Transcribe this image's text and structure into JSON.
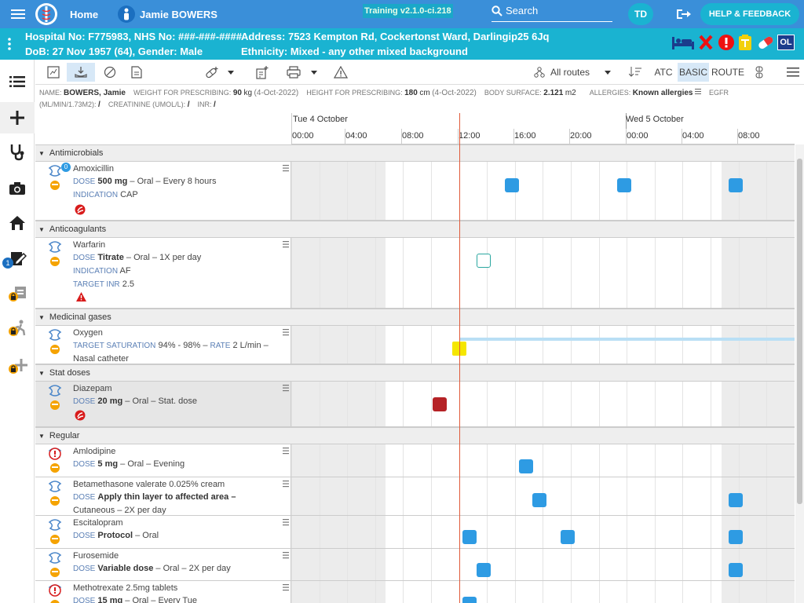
{
  "topbar": {
    "home_label": "Home",
    "patient_name": "Jamie BOWERS",
    "version_label": "Training v2.1.0-ci.218",
    "search_placeholder": "Search",
    "user_initials": "TD",
    "help_label": "HELP & FEEDBACK"
  },
  "patient": {
    "hospital_line": "Hospital No: F775983, NHS No: ###-###-####",
    "address_line": "Address: 7523 Kempton Rd, Cockertonst Ward, Darlingip25 6Jq",
    "dob_line": "DoB: 27 Nov 1957 (64), Gender: Male",
    "ethnicity_line": "Ethnicity: Mixed - any other mixed background",
    "ol_badge": "OL"
  },
  "leftnav": {
    "notif_count": "1"
  },
  "toolbar": {
    "routes_label": "All routes",
    "atc_label": "ATC",
    "basic_label": "BASIC",
    "route_label": "ROUTE"
  },
  "info": {
    "name_label": "NAME:",
    "name_value": "BOWERS, Jamie",
    "weight_label": "WEIGHT FOR PRESCRIBING:",
    "weight_value": "90",
    "weight_unit": "kg",
    "weight_date": "(4-Oct-2022)",
    "height_label": "HEIGHT FOR PRESCRIBING:",
    "height_value": "180",
    "height_unit": "cm",
    "height_date": "(4-Oct-2022)",
    "bsa_label": "BODY SURFACE:",
    "bsa_value": "2.121",
    "bsa_unit": "m2",
    "allergies_label": "ALLERGIES:",
    "allergies_value": "Known allergies",
    "egfr_label": "EGFR",
    "egfr_unit": "(ML/MIN/1.73M2):",
    "egfr_value": "/",
    "creat_label": "CREATININE (UMOL/L):",
    "creat_value": "/",
    "inr_label": "INR:",
    "inr_value": "/"
  },
  "timeline": {
    "day1": "Tue 4 October",
    "day2": "Wed 5 October",
    "hours": [
      "00:00",
      "04:00",
      "08:00",
      "12:00",
      "16:00",
      "20:00",
      "00:00",
      "04:00",
      "08:00"
    ]
  },
  "groups": [
    {
      "name": "Antimicrobials"
    },
    {
      "name": "Anticoagulants"
    },
    {
      "name": "Medicinal gases"
    },
    {
      "name": "Stat doses"
    },
    {
      "name": "Regular"
    }
  ],
  "meds": {
    "amox": {
      "name": "Amoxicillin",
      "badge": "0",
      "dose_label": "DOSE",
      "dose": "500 mg",
      "rest": "– Oral – Every 8 hours",
      "ind_label": "INDICATION",
      "ind": "CAP"
    },
    "warfarin": {
      "name": "Warfarin",
      "dose_label": "DOSE",
      "dose": "Titrate",
      "rest": "– Oral – 1X per day",
      "ind_label": "INDICATION",
      "ind": "AF",
      "target_label": "TARGET INR",
      "target": "2.5"
    },
    "oxygen": {
      "name": "Oxygen",
      "sat_label": "TARGET SATURATION",
      "sat": "94% - 98% –",
      "rate_label": "RATE",
      "rate": "2 L/min –",
      "route": "Nasal catheter"
    },
    "diazepam": {
      "name": "Diazepam",
      "dose_label": "DOSE",
      "dose": "20 mg",
      "rest": "– Oral – Stat. dose"
    },
    "amlodipine": {
      "name": "Amlodipine",
      "dose_label": "DOSE",
      "dose": "5 mg",
      "rest": "– Oral – Evening"
    },
    "betameth": {
      "name": "Betamethasone valerate 0.025% cream",
      "dose_label": "DOSE",
      "dose": "Apply thin layer to affected area –",
      "rest": "Cutaneous – 2X per day"
    },
    "escitalopram": {
      "name": "Escitalopram",
      "dose_label": "DOSE",
      "dose": "Protocol",
      "rest": "– Oral"
    },
    "furosemide": {
      "name": "Furosemide",
      "dose_label": "DOSE",
      "dose": "Variable dose",
      "rest": "– Oral – 2X per day"
    },
    "methotrexate": {
      "name": "Methotrexate 2.5mg tablets",
      "dose_label": "DOSE",
      "dose": "15 mg",
      "rest": "– Oral – Every Tue"
    }
  },
  "colors": {
    "topbar": "#3a8fd9",
    "patient_bar": "#1ab3d1",
    "dose_blue": "#2e9be3",
    "now_line": "#e05a3a",
    "stat_dose": "#b52226",
    "oxygen_start": "#f5e600"
  }
}
